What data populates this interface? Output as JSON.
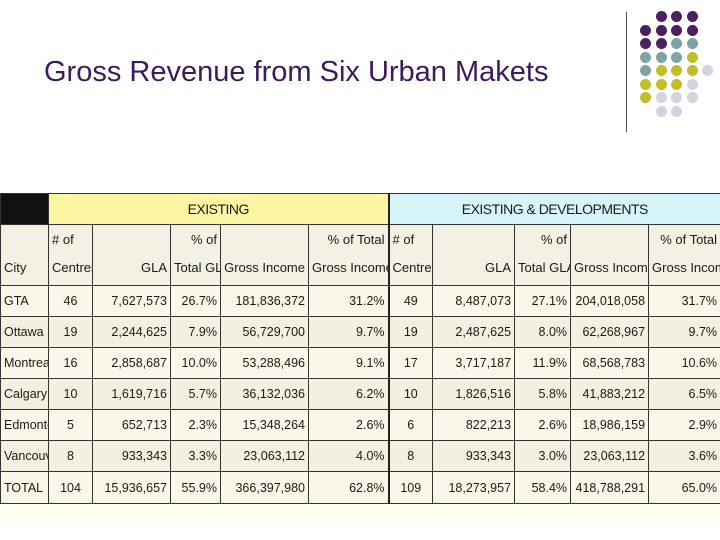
{
  "title": "Gross Revenue from Six Urban Makets",
  "colors": {
    "title": "#3d1a5e",
    "dot_purple": "#4a2160",
    "dot_teal": "#7fa3a6",
    "dot_olive": "#bfbf2a",
    "dot_gray": "#d6d3df",
    "existing_band": "#fcf6a4",
    "developments_band": "#d6f4fa"
  },
  "table": {
    "groups": {
      "existing": "EXISTING",
      "developments": "EXISTING & DEVELOPMENTS"
    },
    "headers": {
      "city": "City",
      "centres_1": "# of",
      "centres_2": "Centres",
      "gla": "GLA",
      "pct_gla_1": "% of",
      "pct_gla_2": "Total GLA",
      "gross": "Gross Income",
      "pct_gross_1": "% of Total",
      "pct_gross_2": "Gross Income"
    },
    "rows": [
      {
        "city": "GTA",
        "e_centres": "46",
        "e_gla": "7,627,573",
        "e_pct_gla": "26.7%",
        "e_gross": "181,836,372",
        "e_pct_gross": "31.2%",
        "d_centres": "49",
        "d_gla": "8,487,073",
        "d_pct_gla": "27.1%",
        "d_gross": "204,018,058",
        "d_pct_gross": "31.7%"
      },
      {
        "city": "Ottawa",
        "e_centres": "19",
        "e_gla": "2,244,625",
        "e_pct_gla": "7.9%",
        "e_gross": "56,729,700",
        "e_pct_gross": "9.7%",
        "d_centres": "19",
        "d_gla": "2,487,625",
        "d_pct_gla": "8.0%",
        "d_gross": "62,268,967",
        "d_pct_gross": "9.7%"
      },
      {
        "city": "Montreal",
        "e_centres": "16",
        "e_gla": "2,858,687",
        "e_pct_gla": "10.0%",
        "e_gross": "53,288,496",
        "e_pct_gross": "9.1%",
        "d_centres": "17",
        "d_gla": "3,717,187",
        "d_pct_gla": "11.9%",
        "d_gross": "68,568,783",
        "d_pct_gross": "10.6%"
      },
      {
        "city": "Calgary",
        "e_centres": "10",
        "e_gla": "1,619,716",
        "e_pct_gla": "5.7%",
        "e_gross": "36,132,036",
        "e_pct_gross": "6.2%",
        "d_centres": "10",
        "d_gla": "1,826,516",
        "d_pct_gla": "5.8%",
        "d_gross": "41,883,212",
        "d_pct_gross": "6.5%"
      },
      {
        "city": "Edmonton",
        "e_centres": "5",
        "e_gla": "652,713",
        "e_pct_gla": "2.3%",
        "e_gross": "15,348,264",
        "e_pct_gross": "2.6%",
        "d_centres": "6",
        "d_gla": "822,213",
        "d_pct_gla": "2.6%",
        "d_gross": "18,986,159",
        "d_pct_gross": "2.9%"
      },
      {
        "city": "Vancouver",
        "e_centres": "8",
        "e_gla": "933,343",
        "e_pct_gla": "3.3%",
        "e_gross": "23,063,112",
        "e_pct_gross": "4.0%",
        "d_centres": "8",
        "d_gla": "933,343",
        "d_pct_gla": "3.0%",
        "d_gross": "23,063,112",
        "d_pct_gross": "3.6%"
      },
      {
        "city": "TOTAL",
        "e_centres": "104",
        "e_gla": "15,936,657",
        "e_pct_gla": "55.9%",
        "e_gross": "366,397,980",
        "e_pct_gross": "62.8%",
        "d_centres": "109",
        "d_gla": "18,273,957",
        "d_pct_gla": "58.4%",
        "d_gross": "418,788,291",
        "d_pct_gross": "65.0%"
      }
    ]
  }
}
